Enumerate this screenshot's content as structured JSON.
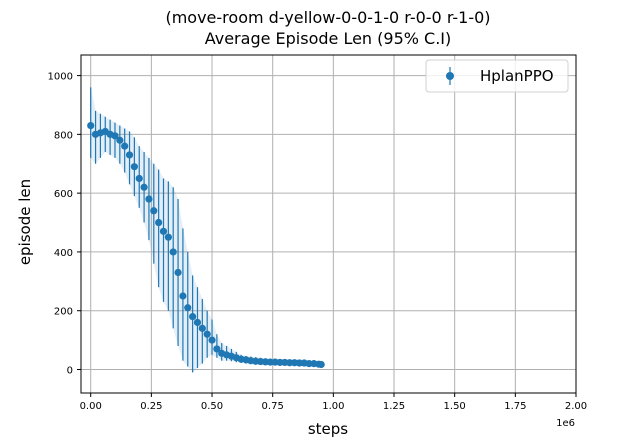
{
  "chart_data": {
    "type": "scatter",
    "title_line1": "(move-room d-yellow-0-0-1-0 r-0-0 r-1-0)",
    "title_line2": "Average Episode Len (95% C.I)",
    "xlabel": "steps",
    "ylabel": "episode len",
    "x_multiplier_label": "1e6",
    "xlim": [
      -0.04,
      2.0
    ],
    "ylim": [
      -80,
      1070
    ],
    "x_ticks": [
      {
        "value": 0.0,
        "label": "0.00"
      },
      {
        "value": 0.25,
        "label": "0.25"
      },
      {
        "value": 0.5,
        "label": "0.50"
      },
      {
        "value": 0.75,
        "label": "0.75"
      },
      {
        "value": 1.0,
        "label": "1.00"
      },
      {
        "value": 1.25,
        "label": "1.25"
      },
      {
        "value": 1.5,
        "label": "1.50"
      },
      {
        "value": 1.75,
        "label": "1.75"
      },
      {
        "value": 2.0,
        "label": "2.00"
      }
    ],
    "y_ticks": [
      {
        "value": 0,
        "label": "0"
      },
      {
        "value": 200,
        "label": "200"
      },
      {
        "value": 400,
        "label": "400"
      },
      {
        "value": 600,
        "label": "600"
      },
      {
        "value": 800,
        "label": "800"
      },
      {
        "value": 1000,
        "label": "1000"
      }
    ],
    "grid": true,
    "legend_position": "top-right",
    "color": "#1f77b4",
    "series": [
      {
        "name": "HplanPPO",
        "x": [
          0.0,
          0.02,
          0.04,
          0.06,
          0.08,
          0.1,
          0.12,
          0.14,
          0.16,
          0.18,
          0.2,
          0.22,
          0.24,
          0.26,
          0.28,
          0.3,
          0.32,
          0.34,
          0.36,
          0.38,
          0.4,
          0.42,
          0.44,
          0.46,
          0.48,
          0.5,
          0.52,
          0.54,
          0.56,
          0.58,
          0.6,
          0.62,
          0.64,
          0.66,
          0.68,
          0.7,
          0.72,
          0.74,
          0.76,
          0.78,
          0.8,
          0.82,
          0.84,
          0.86,
          0.88,
          0.9,
          0.92,
          0.94,
          0.95
        ],
        "y": [
          830,
          800,
          805,
          810,
          800,
          795,
          780,
          760,
          730,
          690,
          650,
          620,
          580,
          540,
          500,
          470,
          450,
          400,
          330,
          250,
          210,
          180,
          160,
          140,
          120,
          100,
          70,
          55,
          50,
          45,
          40,
          35,
          33,
          30,
          28,
          27,
          26,
          25,
          25,
          24,
          24,
          23,
          23,
          22,
          22,
          20,
          20,
          18,
          17
        ],
        "ci_lower": [
          720,
          700,
          720,
          740,
          730,
          720,
          700,
          670,
          630,
          590,
          550,
          500,
          440,
          360,
          280,
          230,
          200,
          140,
          80,
          30,
          10,
          -10,
          5,
          20,
          40,
          50,
          40,
          30,
          30,
          28,
          25,
          22,
          20,
          18,
          17,
          16,
          15,
          15,
          14,
          14,
          14,
          13,
          13,
          12,
          12,
          11,
          11,
          10,
          10
        ],
        "ci_upper": [
          960,
          880,
          870,
          860,
          850,
          840,
          830,
          820,
          810,
          790,
          760,
          740,
          720,
          700,
          680,
          650,
          640,
          620,
          580,
          480,
          400,
          320,
          280,
          240,
          200,
          170,
          120,
          90,
          80,
          70,
          60,
          50,
          46,
          44,
          42,
          40,
          38,
          37,
          36,
          36,
          35,
          34,
          34,
          34,
          33,
          30,
          30,
          28,
          26
        ]
      }
    ]
  }
}
